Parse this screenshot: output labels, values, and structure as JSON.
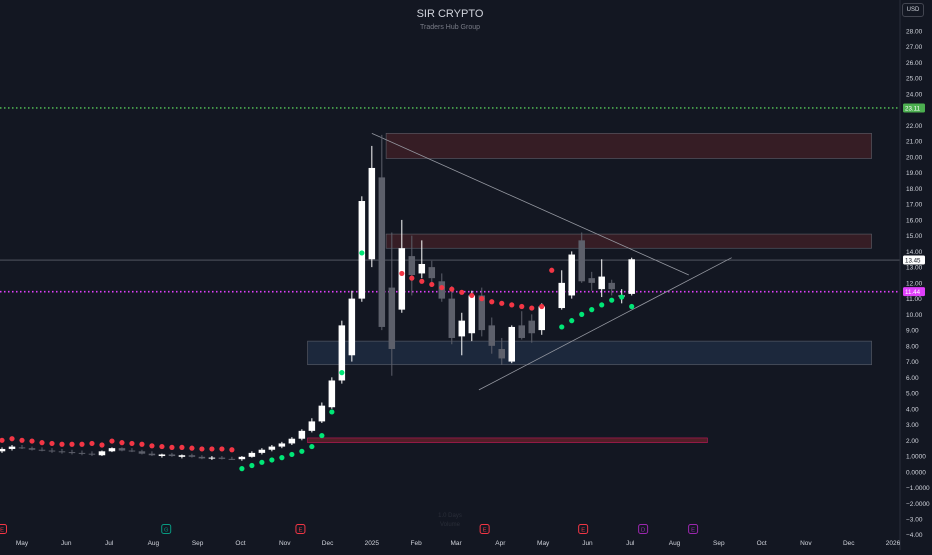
{
  "header": {
    "title": "SIR CRYPTO",
    "subtitle": "Traders Hub Group",
    "currency": "USD"
  },
  "watermark": {
    "line1": "1.0 Days",
    "line2": "Volume"
  },
  "colors": {
    "background": "#131722",
    "up_candle": "#ffffff",
    "down_candle": "#5d606b",
    "dot_red": "#f23645",
    "dot_green": "#00e676",
    "green_line": "#4caf50",
    "magenta_line": "#e040fb",
    "supply_zone": "#3b1e26",
    "demand_zone": "#1e2a3f",
    "axis_text": "#d1d4dc",
    "event_red": "#f23645",
    "event_green": "#089981",
    "event_purple": "#9c27b0"
  },
  "chart_data": {
    "type": "candlestick",
    "title": "SIR CRYPTO",
    "subtitle": "Traders Hub Group",
    "currency": "USD",
    "y_axis": {
      "scale": "linear",
      "ticks": [
        "28.00",
        "27.00",
        "26.00",
        "25.00",
        "24.00",
        "23.00",
        "22.00",
        "21.00",
        "20.00",
        "19.00",
        "18.00",
        "17.00",
        "16.00",
        "15.00",
        "14.00",
        "13.00",
        "12.00",
        "11.00",
        "10.00",
        "9.00",
        "8.00",
        "7.00",
        "6.00",
        "5.00",
        "4.00",
        "3.00",
        "2.00",
        "1.0000",
        "0.0000",
        "−1.0000",
        "−2.0000",
        "−3.00",
        "−4.00"
      ],
      "range": [
        -4.4,
        29.2
      ]
    },
    "x_axis": {
      "ticks": [
        "May",
        "Jun",
        "Jul",
        "Aug",
        "Sep",
        "Oct",
        "Nov",
        "Dec",
        "2025",
        "Feb",
        "Mar",
        "Apr",
        "May",
        "Jun",
        "Jul",
        "Aug",
        "Sep",
        "Oct",
        "Nov",
        "Dec",
        "2026"
      ],
      "tick_days": [
        0,
        31,
        61,
        92,
        123,
        153,
        184,
        214,
        245,
        276,
        304,
        335,
        365,
        396,
        426,
        457,
        488,
        518,
        549,
        579,
        610
      ]
    },
    "price_lines": [
      {
        "name": "green-level",
        "value": 23.11,
        "label": "23.11",
        "color": "#4caf50",
        "style": "dotted"
      },
      {
        "name": "current-price",
        "value": 13.45,
        "label": "13.45",
        "color": "#787b86",
        "style": "solid"
      },
      {
        "name": "magenta-level",
        "value": 11.44,
        "label": "11.44",
        "color": "#e040fb",
        "style": "dotted"
      }
    ],
    "zones": [
      {
        "name": "upper-supply-zone",
        "from_day": 255,
        "to_day": 595,
        "low": 19.9,
        "high": 21.5,
        "color": "#3b1e26"
      },
      {
        "name": "mid-supply-zone",
        "from_day": 255,
        "to_day": 595,
        "low": 14.2,
        "high": 15.1,
        "color": "#3b1e26"
      },
      {
        "name": "demand-zone",
        "from_day": 200,
        "to_day": 595,
        "low": 6.8,
        "high": 8.3,
        "color": "#1e2a3f"
      },
      {
        "name": "base-zone",
        "from_day": 200,
        "to_day": 480,
        "low": 1.85,
        "high": 2.15,
        "color": "#5a1f28"
      }
    ],
    "trendlines": [
      {
        "name": "descending-trendline",
        "from": [
          245,
          21.5
        ],
        "to": [
          467,
          12.5
        ],
        "color": "#9598a1"
      },
      {
        "name": "ascending-trendline",
        "from": [
          320,
          5.2
        ],
        "to": [
          497,
          13.6
        ],
        "color": "#9598a1"
      }
    ],
    "candles": [
      {
        "d": -14,
        "o": 1.3,
        "h": 1.55,
        "l": 1.2,
        "c": 1.45
      },
      {
        "d": -7,
        "o": 1.45,
        "h": 1.7,
        "l": 1.35,
        "c": 1.6
      },
      {
        "d": 0,
        "o": 1.55,
        "h": 1.7,
        "l": 1.45,
        "c": 1.5
      },
      {
        "d": 7,
        "o": 1.5,
        "h": 1.6,
        "l": 1.35,
        "c": 1.4
      },
      {
        "d": 14,
        "o": 1.4,
        "h": 1.55,
        "l": 1.3,
        "c": 1.35
      },
      {
        "d": 21,
        "o": 1.35,
        "h": 1.5,
        "l": 1.2,
        "c": 1.3
      },
      {
        "d": 28,
        "o": 1.3,
        "h": 1.45,
        "l": 1.15,
        "c": 1.25
      },
      {
        "d": 35,
        "o": 1.25,
        "h": 1.4,
        "l": 1.1,
        "c": 1.2
      },
      {
        "d": 42,
        "o": 1.2,
        "h": 1.35,
        "l": 1.05,
        "c": 1.15
      },
      {
        "d": 49,
        "o": 1.15,
        "h": 1.3,
        "l": 1.0,
        "c": 1.1
      },
      {
        "d": 56,
        "o": 1.05,
        "h": 1.35,
        "l": 1.0,
        "c": 1.3
      },
      {
        "d": 63,
        "o": 1.3,
        "h": 1.55,
        "l": 1.25,
        "c": 1.5
      },
      {
        "d": 70,
        "o": 1.5,
        "h": 1.55,
        "l": 1.3,
        "c": 1.35
      },
      {
        "d": 77,
        "o": 1.35,
        "h": 1.5,
        "l": 1.25,
        "c": 1.3
      },
      {
        "d": 84,
        "o": 1.3,
        "h": 1.4,
        "l": 1.1,
        "c": 1.15
      },
      {
        "d": 91,
        "o": 1.15,
        "h": 1.3,
        "l": 1.0,
        "c": 1.05
      },
      {
        "d": 98,
        "o": 1.0,
        "h": 1.15,
        "l": 0.9,
        "c": 1.1
      },
      {
        "d": 105,
        "o": 1.1,
        "h": 1.2,
        "l": 0.95,
        "c": 1.0
      },
      {
        "d": 112,
        "o": 0.95,
        "h": 1.1,
        "l": 0.85,
        "c": 1.05
      },
      {
        "d": 119,
        "o": 1.05,
        "h": 1.15,
        "l": 0.9,
        "c": 0.95
      },
      {
        "d": 126,
        "o": 0.95,
        "h": 1.05,
        "l": 0.8,
        "c": 0.85
      },
      {
        "d": 133,
        "o": 0.85,
        "h": 1.0,
        "l": 0.75,
        "c": 0.9
      },
      {
        "d": 140,
        "o": 0.9,
        "h": 1.0,
        "l": 0.78,
        "c": 0.82
      },
      {
        "d": 147,
        "o": 0.82,
        "h": 0.95,
        "l": 0.75,
        "c": 0.8
      },
      {
        "d": 154,
        "o": 0.8,
        "h": 1.0,
        "l": 0.7,
        "c": 0.95
      },
      {
        "d": 161,
        "o": 0.95,
        "h": 1.3,
        "l": 0.9,
        "c": 1.2
      },
      {
        "d": 168,
        "o": 1.2,
        "h": 1.5,
        "l": 1.1,
        "c": 1.4
      },
      {
        "d": 175,
        "o": 1.4,
        "h": 1.7,
        "l": 1.3,
        "c": 1.6
      },
      {
        "d": 182,
        "o": 1.6,
        "h": 1.9,
        "l": 1.5,
        "c": 1.8
      },
      {
        "d": 189,
        "o": 1.8,
        "h": 2.2,
        "l": 1.7,
        "c": 2.1
      },
      {
        "d": 196,
        "o": 2.1,
        "h": 2.7,
        "l": 2.0,
        "c": 2.6
      },
      {
        "d": 203,
        "o": 2.6,
        "h": 3.4,
        "l": 2.5,
        "c": 3.2
      },
      {
        "d": 210,
        "o": 3.2,
        "h": 4.4,
        "l": 3.1,
        "c": 4.2
      },
      {
        "d": 217,
        "o": 4.1,
        "h": 6.0,
        "l": 4.0,
        "c": 5.8
      },
      {
        "d": 224,
        "o": 5.8,
        "h": 9.6,
        "l": 5.6,
        "c": 9.3
      },
      {
        "d": 231,
        "o": 7.4,
        "h": 11.5,
        "l": 7.0,
        "c": 11.0
      },
      {
        "d": 238,
        "o": 11.0,
        "h": 17.5,
        "l": 10.8,
        "c": 17.2
      },
      {
        "d": 245,
        "o": 13.5,
        "h": 20.7,
        "l": 13.0,
        "c": 19.3
      },
      {
        "d": 252,
        "o": 18.7,
        "h": 21.4,
        "l": 9.0,
        "c": 9.2
      },
      {
        "d": 259,
        "o": 11.7,
        "h": 15.2,
        "l": 6.1,
        "c": 7.8
      },
      {
        "d": 266,
        "o": 10.3,
        "h": 16.0,
        "l": 10.1,
        "c": 14.2
      },
      {
        "d": 273,
        "o": 13.7,
        "h": 15.0,
        "l": 11.2,
        "c": 12.5
      },
      {
        "d": 280,
        "o": 12.6,
        "h": 14.7,
        "l": 12.3,
        "c": 13.2
      },
      {
        "d": 287,
        "o": 13.0,
        "h": 13.4,
        "l": 11.9,
        "c": 12.3
      },
      {
        "d": 294,
        "o": 12.1,
        "h": 12.6,
        "l": 10.8,
        "c": 11.0
      },
      {
        "d": 301,
        "o": 11.0,
        "h": 11.8,
        "l": 8.1,
        "c": 8.5
      },
      {
        "d": 308,
        "o": 8.6,
        "h": 10.1,
        "l": 7.4,
        "c": 9.6
      },
      {
        "d": 315,
        "o": 8.8,
        "h": 11.5,
        "l": 8.3,
        "c": 11.2
      },
      {
        "d": 322,
        "o": 11.2,
        "h": 11.7,
        "l": 8.6,
        "c": 9.0
      },
      {
        "d": 329,
        "o": 9.3,
        "h": 9.8,
        "l": 7.5,
        "c": 8.0
      },
      {
        "d": 336,
        "o": 7.8,
        "h": 8.5,
        "l": 6.8,
        "c": 7.2
      },
      {
        "d": 343,
        "o": 7.0,
        "h": 9.3,
        "l": 6.9,
        "c": 9.2
      },
      {
        "d": 350,
        "o": 9.3,
        "h": 10.2,
        "l": 8.4,
        "c": 8.5
      },
      {
        "d": 357,
        "o": 9.6,
        "h": 10.0,
        "l": 8.2,
        "c": 8.8
      },
      {
        "d": 364,
        "o": 9.0,
        "h": 10.7,
        "l": 8.7,
        "c": 10.5
      },
      {
        "d": 378,
        "o": 10.4,
        "h": 12.8,
        "l": 10.3,
        "c": 12.0
      },
      {
        "d": 385,
        "o": 11.2,
        "h": 14.0,
        "l": 11.0,
        "c": 13.8
      },
      {
        "d": 392,
        "o": 14.7,
        "h": 15.2,
        "l": 12.0,
        "c": 12.1
      },
      {
        "d": 399,
        "o": 12.3,
        "h": 12.7,
        "l": 11.5,
        "c": 12.0
      },
      {
        "d": 406,
        "o": 11.6,
        "h": 13.5,
        "l": 11.1,
        "c": 12.4
      },
      {
        "d": 413,
        "o": 12.0,
        "h": 12.2,
        "l": 11.2,
        "c": 11.6
      },
      {
        "d": 420,
        "o": 11.2,
        "h": 11.6,
        "l": 10.7,
        "c": 11.2
      },
      {
        "d": 427,
        "o": 11.3,
        "h": 13.6,
        "l": 11.2,
        "c": 13.5
      }
    ],
    "dots": [
      {
        "d": -14,
        "v": 2.0,
        "c": "red"
      },
      {
        "d": -7,
        "v": 2.1,
        "c": "red"
      },
      {
        "d": 0,
        "v": 2.0,
        "c": "red"
      },
      {
        "d": 7,
        "v": 1.95,
        "c": "red"
      },
      {
        "d": 14,
        "v": 1.85,
        "c": "red"
      },
      {
        "d": 21,
        "v": 1.8,
        "c": "red"
      },
      {
        "d": 28,
        "v": 1.75,
        "c": "red"
      },
      {
        "d": 35,
        "v": 1.75,
        "c": "red"
      },
      {
        "d": 42,
        "v": 1.75,
        "c": "red"
      },
      {
        "d": 49,
        "v": 1.8,
        "c": "red"
      },
      {
        "d": 56,
        "v": 1.7,
        "c": "red"
      },
      {
        "d": 63,
        "v": 1.95,
        "c": "red"
      },
      {
        "d": 70,
        "v": 1.85,
        "c": "red"
      },
      {
        "d": 77,
        "v": 1.8,
        "c": "red"
      },
      {
        "d": 84,
        "v": 1.75,
        "c": "red"
      },
      {
        "d": 91,
        "v": 1.65,
        "c": "red"
      },
      {
        "d": 98,
        "v": 1.6,
        "c": "red"
      },
      {
        "d": 105,
        "v": 1.55,
        "c": "red"
      },
      {
        "d": 112,
        "v": 1.55,
        "c": "red"
      },
      {
        "d": 119,
        "v": 1.5,
        "c": "red"
      },
      {
        "d": 126,
        "v": 1.45,
        "c": "red"
      },
      {
        "d": 133,
        "v": 1.45,
        "c": "red"
      },
      {
        "d": 140,
        "v": 1.45,
        "c": "red"
      },
      {
        "d": 147,
        "v": 1.4,
        "c": "red"
      },
      {
        "d": 154,
        "v": 0.2,
        "c": "green"
      },
      {
        "d": 161,
        "v": 0.4,
        "c": "green"
      },
      {
        "d": 168,
        "v": 0.6,
        "c": "green"
      },
      {
        "d": 175,
        "v": 0.75,
        "c": "green"
      },
      {
        "d": 182,
        "v": 0.9,
        "c": "green"
      },
      {
        "d": 189,
        "v": 1.1,
        "c": "green"
      },
      {
        "d": 196,
        "v": 1.3,
        "c": "green"
      },
      {
        "d": 203,
        "v": 1.6,
        "c": "green"
      },
      {
        "d": 210,
        "v": 2.3,
        "c": "green"
      },
      {
        "d": 217,
        "v": 3.8,
        "c": "green"
      },
      {
        "d": 224,
        "v": 6.3,
        "c": "green"
      },
      {
        "d": 238,
        "v": 13.9,
        "c": "green"
      },
      {
        "d": 266,
        "v": 12.6,
        "c": "red"
      },
      {
        "d": 273,
        "v": 12.3,
        "c": "red"
      },
      {
        "d": 280,
        "v": 12.1,
        "c": "red"
      },
      {
        "d": 287,
        "v": 11.9,
        "c": "red"
      },
      {
        "d": 294,
        "v": 11.7,
        "c": "red"
      },
      {
        "d": 301,
        "v": 11.6,
        "c": "red"
      },
      {
        "d": 308,
        "v": 11.4,
        "c": "red"
      },
      {
        "d": 315,
        "v": 11.2,
        "c": "red"
      },
      {
        "d": 322,
        "v": 11.0,
        "c": "red"
      },
      {
        "d": 329,
        "v": 10.8,
        "c": "red"
      },
      {
        "d": 336,
        "v": 10.7,
        "c": "red"
      },
      {
        "d": 343,
        "v": 10.6,
        "c": "red"
      },
      {
        "d": 350,
        "v": 10.5,
        "c": "red"
      },
      {
        "d": 357,
        "v": 10.4,
        "c": "red"
      },
      {
        "d": 364,
        "v": 10.5,
        "c": "red"
      },
      {
        "d": 371,
        "v": 12.8,
        "c": "red"
      },
      {
        "d": 378,
        "v": 9.2,
        "c": "green"
      },
      {
        "d": 385,
        "v": 9.6,
        "c": "green"
      },
      {
        "d": 392,
        "v": 10.0,
        "c": "green"
      },
      {
        "d": 399,
        "v": 10.3,
        "c": "green"
      },
      {
        "d": 406,
        "v": 10.6,
        "c": "green"
      },
      {
        "d": 413,
        "v": 10.9,
        "c": "green"
      },
      {
        "d": 420,
        "v": 11.1,
        "c": "green"
      },
      {
        "d": 427,
        "v": 10.5,
        "c": "green"
      }
    ],
    "events": [
      {
        "d": -14,
        "label": "E",
        "color": "#f23645"
      },
      {
        "d": 101,
        "label": "G",
        "color": "#089981"
      },
      {
        "d": 195,
        "label": "E",
        "color": "#f23645"
      },
      {
        "d": 324,
        "label": "E",
        "color": "#f23645"
      },
      {
        "d": 393,
        "label": "E",
        "color": "#f23645"
      },
      {
        "d": 435,
        "label": "D",
        "color": "#9c27b0"
      },
      {
        "d": 470,
        "label": "E",
        "color": "#9c27b0"
      }
    ]
  }
}
